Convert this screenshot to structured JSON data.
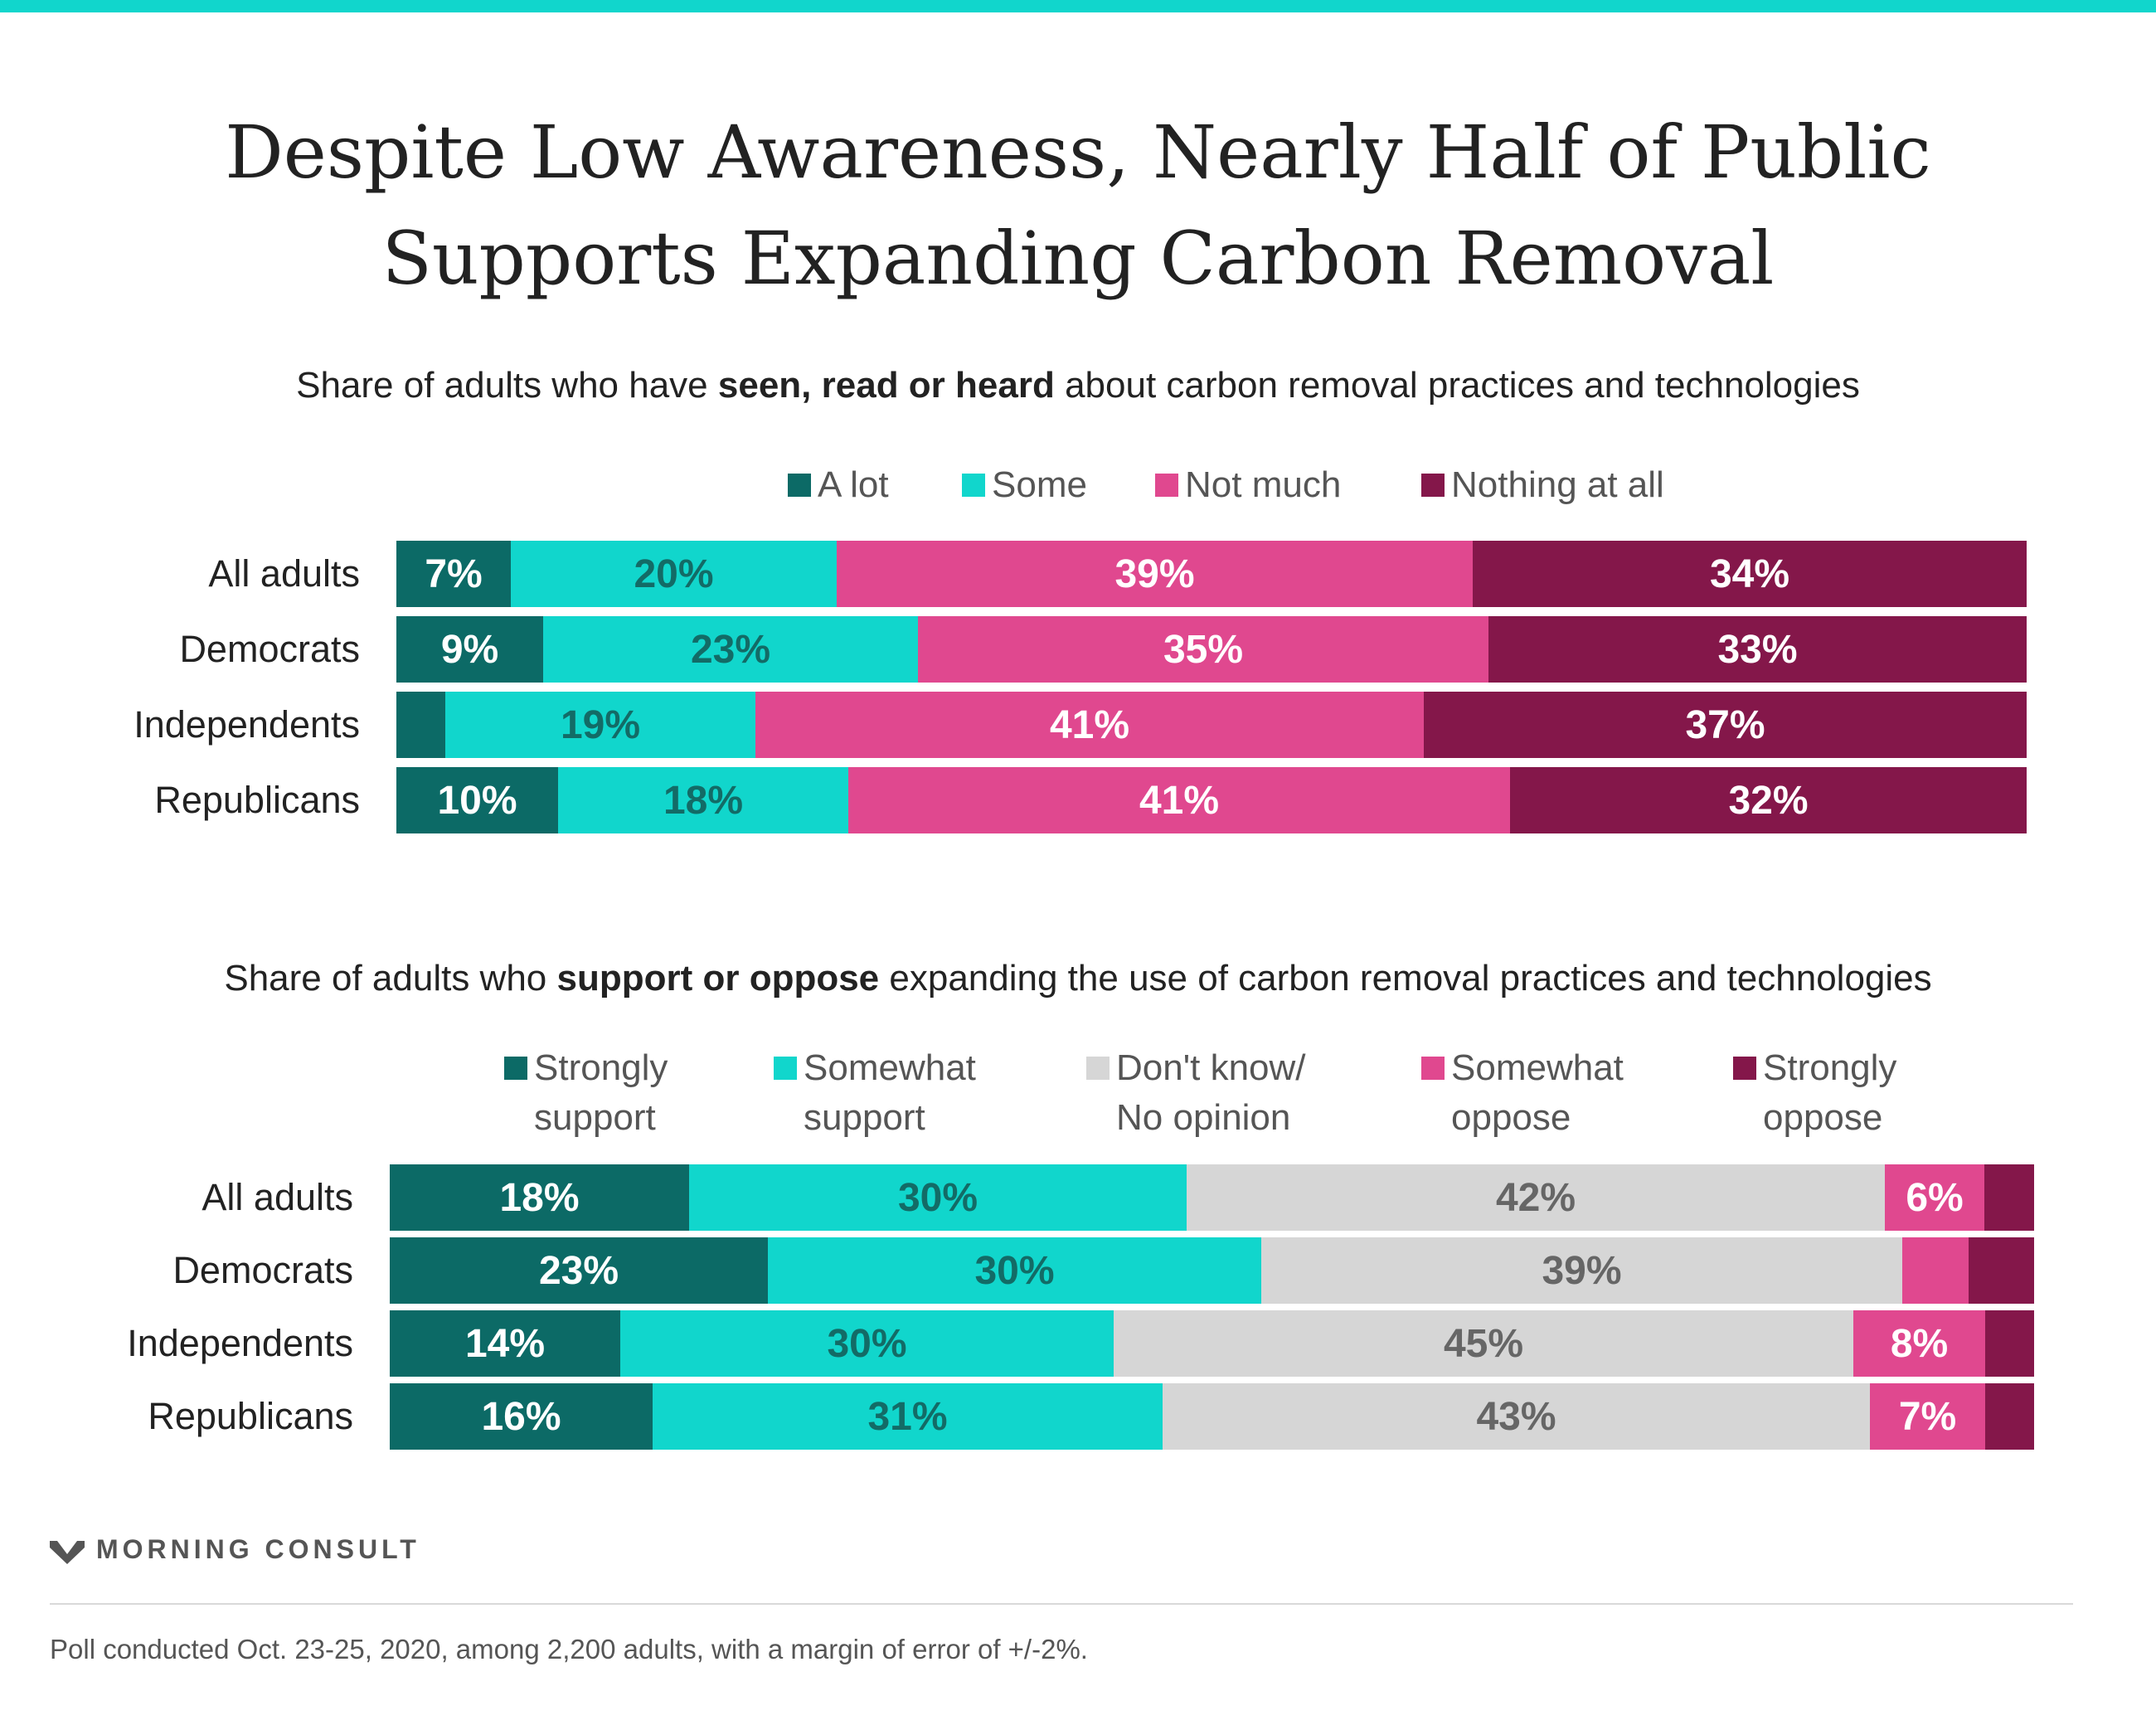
{
  "title_lines": [
    "Despite Low Awareness, Nearly Half of Public",
    "Supports Expanding Carbon Removal"
  ],
  "colors": {
    "accent_stripe": "#11d6cc",
    "dark_teal": "#0c6a66",
    "teal": "#11d6cc",
    "gray": "#d6d6d6",
    "pink": "#e0488f",
    "maroon": "#84174a"
  },
  "chart_data": [
    {
      "type": "bar",
      "orientation": "horizontal",
      "stacked": true,
      "subtitle": {
        "pre": "Share of adults who have ",
        "bold": "seen, read or heard",
        "post": " about carbon removal practices and technologies"
      },
      "categories": [
        "All adults",
        "Democrats",
        "Independents",
        "Republicans"
      ],
      "series": [
        {
          "name": "A lot",
          "color": "#0c6a66",
          "label_color": "#ffffff",
          "values": [
            7,
            9,
            3,
            10
          ],
          "labels": [
            "7%",
            "9%",
            "",
            "10%"
          ]
        },
        {
          "name": "Some",
          "color": "#11d6cc",
          "label_color": "#136b66",
          "values": [
            20,
            23,
            19,
            18
          ],
          "labels": [
            "20%",
            "23%",
            "19%",
            "18%"
          ]
        },
        {
          "name": "Not much",
          "color": "#e0488f",
          "label_color": "#ffffff",
          "values": [
            39,
            35,
            41,
            41
          ],
          "labels": [
            "39%",
            "35%",
            "41%",
            "41%"
          ]
        },
        {
          "name": "Nothing at all",
          "color": "#84174a",
          "label_color": "#ffffff",
          "values": [
            34,
            33,
            37,
            32
          ],
          "labels": [
            "34%",
            "33%",
            "37%",
            "32%"
          ]
        }
      ],
      "legend": "top"
    },
    {
      "type": "bar",
      "orientation": "horizontal",
      "stacked": true,
      "subtitle": {
        "pre": "Share of adults who ",
        "bold": "support or oppose",
        "post": " expanding the use of carbon removal practices and technologies"
      },
      "categories": [
        "All adults",
        "Democrats",
        "Independents",
        "Republicans"
      ],
      "series": [
        {
          "name": "Strongly support",
          "legend_lines": [
            "Strongly",
            "support"
          ],
          "color": "#0c6a66",
          "label_color": "#ffffff",
          "values": [
            18,
            23,
            14,
            16
          ],
          "labels": [
            "18%",
            "23%",
            "14%",
            "16%"
          ]
        },
        {
          "name": "Somewhat support",
          "legend_lines": [
            "Somewhat",
            "support"
          ],
          "color": "#11d6cc",
          "label_color": "#136b66",
          "values": [
            30,
            30,
            30,
            31
          ],
          "labels": [
            "30%",
            "30%",
            "30%",
            "31%"
          ]
        },
        {
          "name": "Don't know/ No opinion",
          "legend_lines": [
            "Don't know/",
            "No opinion"
          ],
          "color": "#d6d6d6",
          "label_color": "#666666",
          "values": [
            42,
            39,
            45,
            43
          ],
          "labels": [
            "42%",
            "39%",
            "45%",
            "43%"
          ]
        },
        {
          "name": "Somewhat oppose",
          "legend_lines": [
            "Somewhat",
            "oppose"
          ],
          "color": "#e0488f",
          "label_color": "#ffffff",
          "values": [
            6,
            4,
            8,
            7
          ],
          "labels": [
            "6%",
            "",
            "8%",
            "7%"
          ]
        },
        {
          "name": "Strongly oppose",
          "legend_lines": [
            "Strongly",
            "oppose"
          ],
          "color": "#84174a",
          "label_color": "#ffffff",
          "values": [
            3,
            4,
            3,
            3
          ],
          "labels": [
            "",
            "",
            "",
            ""
          ]
        }
      ],
      "legend": "top"
    }
  ],
  "logo_text": "MORNING CONSULT",
  "footnote": "Poll conducted Oct. 23-25, 2020, among 2,200 adults, with a margin of error of +/-2%."
}
